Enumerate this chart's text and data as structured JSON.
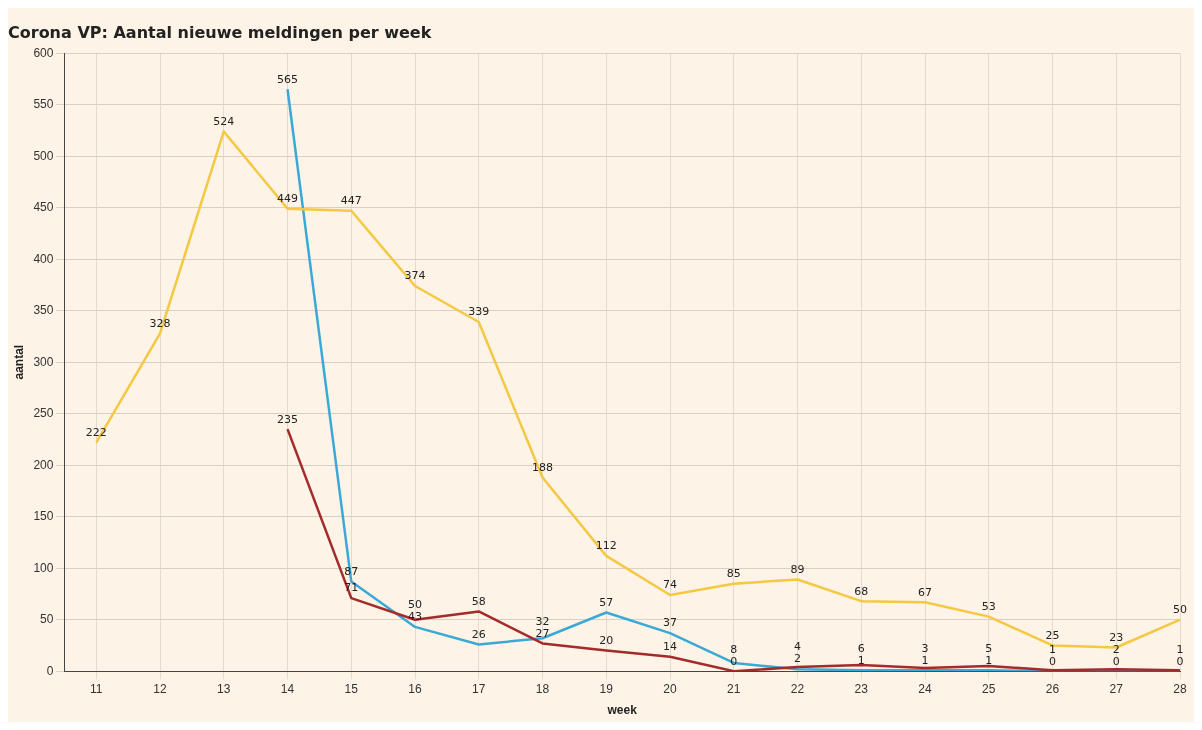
{
  "chart_data": {
    "type": "line",
    "title": "Corona VP: Aantal nieuwe meldingen per week",
    "xlabel": "week",
    "ylabel": "aantal",
    "x": [
      11,
      12,
      13,
      14,
      15,
      16,
      17,
      18,
      19,
      20,
      21,
      22,
      23,
      24,
      25,
      26,
      27,
      28
    ],
    "xlim": [
      10.5,
      28
    ],
    "xticks": [
      11,
      12,
      13,
      14,
      15,
      16,
      17,
      18,
      19,
      20,
      21,
      22,
      23,
      24,
      25,
      26,
      27,
      28
    ],
    "ylim": [
      0,
      600
    ],
    "yticks": [
      0,
      50,
      100,
      150,
      200,
      250,
      300,
      350,
      400,
      450,
      500,
      550,
      600
    ],
    "grid": true,
    "marker": "none",
    "line_style": "solid",
    "data_labels": true,
    "series": [
      {
        "color": "#f5c842",
        "values": [
          222,
          328,
          524,
          449,
          447,
          374,
          339,
          188,
          112,
          74,
          85,
          89,
          68,
          67,
          53,
          25,
          23,
          50
        ]
      },
      {
        "color": "#a52a2a",
        "values": [
          null,
          null,
          null,
          235,
          71,
          50,
          58,
          27,
          20,
          14,
          0,
          4,
          6,
          3,
          5,
          1,
          2,
          1
        ]
      },
      {
        "color": "#3ba9d6",
        "values": [
          null,
          null,
          null,
          565,
          87,
          43,
          26,
          32,
          57,
          37,
          8,
          2,
          1,
          1,
          1,
          0,
          0,
          0
        ]
      }
    ]
  }
}
